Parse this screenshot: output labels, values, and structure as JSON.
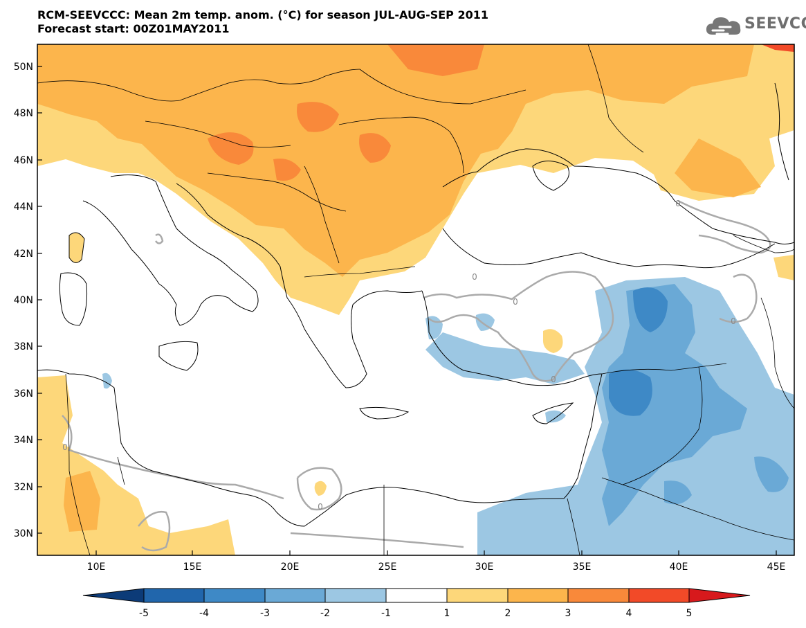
{
  "header": {
    "title_line1": "RCM-SEEVCCC: Mean 2m temp. anom. (°C) for season JUL-AUG-SEP 2011",
    "title_line2": "Forecast start: 00Z01MAY2011"
  },
  "logo": {
    "text": "SEEVCCC",
    "icon": "cloud-icon"
  },
  "map": {
    "lon_ticks": [
      "10E",
      "15E",
      "20E",
      "25E",
      "30E",
      "35E",
      "40E",
      "45E"
    ],
    "lat_ticks": [
      "50N",
      "48N",
      "46N",
      "44N",
      "42N",
      "40N",
      "38N",
      "36N",
      "34N",
      "32N",
      "30N"
    ],
    "contour_labels": [
      "0",
      "0",
      "0",
      "0",
      "0",
      "0",
      "0"
    ]
  },
  "colorbar": {
    "labels": [
      "-5",
      "-4",
      "-3",
      "-2",
      "-1",
      "1",
      "2",
      "3",
      "4",
      "5"
    ],
    "colors": {
      "below_-5": "#0c3b78",
      "-5_-4": "#2166ac",
      "-4_-3": "#3e89c6",
      "-3_-2": "#6aa9d6",
      "-2_-1": "#9cc7e3",
      "-1_1": "#ffffff",
      "1_2": "#fdd77a",
      "2_3": "#fcb54c",
      "3_4": "#f9893a",
      "4_5": "#f24a28",
      "above_5": "#d7191c"
    }
  }
}
